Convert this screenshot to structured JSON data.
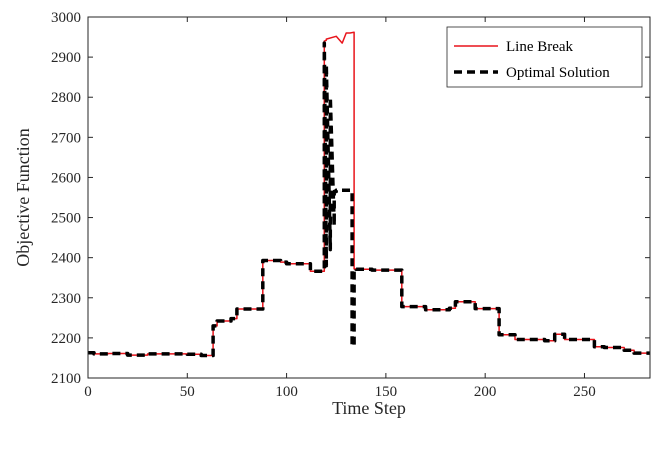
{
  "chart_data": {
    "type": "line",
    "title": "",
    "xlabel": "Time Step",
    "ylabel": "Objective Function",
    "xlim": [
      0,
      283
    ],
    "ylim": [
      2100,
      3000
    ],
    "xticks": [
      0,
      50,
      100,
      150,
      200,
      250
    ],
    "yticks": [
      2100,
      2200,
      2300,
      2400,
      2500,
      2600,
      2700,
      2800,
      2900,
      3000
    ],
    "grid": false,
    "legend_position": "top-right",
    "series": [
      {
        "name": "Line Break",
        "color": "#e8141b",
        "style": "solid",
        "x": [
          0,
          3,
          3,
          10,
          10,
          20,
          20,
          30,
          30,
          50,
          50,
          57,
          57,
          63,
          63,
          65,
          65,
          72,
          72,
          75,
          75,
          88,
          88,
          97,
          97,
          100,
          100,
          112,
          112,
          119,
          119,
          120,
          120,
          125,
          128,
          130,
          132,
          134,
          134,
          135,
          135,
          143,
          143,
          158,
          158,
          170,
          170,
          182,
          182,
          185,
          185,
          195,
          195,
          207,
          207,
          215,
          215,
          230,
          230,
          235,
          235,
          240,
          240,
          255,
          255,
          260,
          260,
          270,
          270,
          275,
          275,
          283
        ],
        "y": [
          2163,
          2163,
          2160,
          2160,
          2161,
          2161,
          2157,
          2157,
          2160,
          2160,
          2159,
          2159,
          2156,
          2156,
          2230,
          2230,
          2242,
          2242,
          2248,
          2248,
          2272,
          2272,
          2393,
          2393,
          2389,
          2389,
          2385,
          2385,
          2366,
          2366,
          2940,
          2942,
          2945,
          2952,
          2935,
          2960,
          2960,
          2962,
          2372,
          2372,
          2371,
          2371,
          2369,
          2369,
          2278,
          2278,
          2270,
          2270,
          2274,
          2274,
          2290,
          2290,
          2273,
          2273,
          2208,
          2208,
          2196,
          2196,
          2193,
          2193,
          2209,
          2209,
          2196,
          2196,
          2178,
          2178,
          2176,
          2176,
          2169,
          2169,
          2162,
          2162
        ]
      },
      {
        "name": "Optimal Solution",
        "color": "#000000",
        "style": "dashed",
        "x": [
          0,
          3,
          3,
          10,
          10,
          20,
          20,
          30,
          30,
          50,
          50,
          57,
          57,
          63,
          63,
          65,
          65,
          72,
          72,
          75,
          75,
          88,
          88,
          97,
          97,
          100,
          100,
          112,
          112,
          119,
          119,
          120,
          120,
          122,
          122,
          124,
          124,
          125,
          125,
          133,
          133,
          134,
          134,
          135,
          135,
          143,
          143,
          158,
          158,
          170,
          170,
          182,
          182,
          185,
          185,
          195,
          195,
          207,
          207,
          215,
          215,
          230,
          230,
          235,
          235,
          240,
          240,
          255,
          255,
          260,
          260,
          270,
          270,
          275,
          275,
          283
        ],
        "y": [
          2163,
          2163,
          2160,
          2160,
          2161,
          2161,
          2157,
          2157,
          2160,
          2160,
          2159,
          2159,
          2156,
          2156,
          2230,
          2230,
          2242,
          2242,
          2248,
          2248,
          2272,
          2272,
          2393,
          2393,
          2389,
          2389,
          2385,
          2385,
          2366,
          2366,
          2935,
          2380,
          2880,
          2420,
          2800,
          2480,
          2565,
          2565,
          2568,
          2568,
          2180,
          2180,
          2372,
          2372,
          2371,
          2371,
          2369,
          2369,
          2278,
          2278,
          2270,
          2270,
          2274,
          2274,
          2290,
          2290,
          2273,
          2273,
          2208,
          2208,
          2196,
          2196,
          2193,
          2193,
          2209,
          2209,
          2196,
          2196,
          2178,
          2178,
          2176,
          2176,
          2169,
          2169,
          2162,
          2162
        ]
      }
    ]
  }
}
